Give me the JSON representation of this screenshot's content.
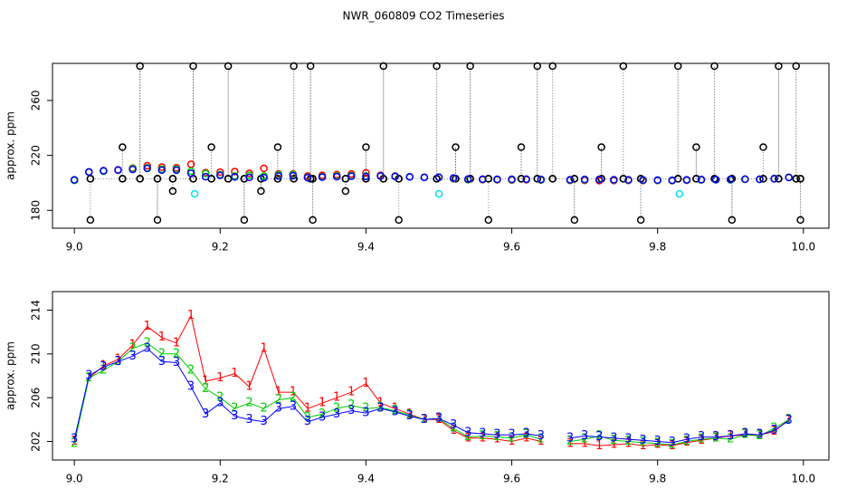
{
  "chart_data": [
    {
      "type": "scatter",
      "title": "NWR_060809  CO2 Timeseries",
      "y_label": "approx. ppm",
      "xlim": [
        8.97,
        10.035
      ],
      "ylim": [
        167,
        287
      ],
      "xticks": [
        {
          "value": 9,
          "label": "9.0"
        },
        9.2,
        9.4,
        9.6,
        9.8,
        {
          "value": 10,
          "label": "10.0"
        }
      ],
      "yticks": [
        180,
        220,
        260
      ],
      "x": [
        9,
        9.02,
        9.04,
        9.06,
        9.08,
        9.1,
        9.12,
        9.14,
        9.16,
        9.18,
        9.2,
        9.22,
        9.24,
        9.26,
        9.28,
        9.3,
        9.32,
        9.34,
        9.36,
        9.38,
        9.4,
        9.42,
        9.44,
        9.46,
        9.48,
        9.5,
        9.52,
        9.54,
        9.56,
        9.58,
        9.6,
        9.62,
        9.64,
        9.66,
        9.68,
        9.7,
        9.72,
        9.74,
        9.76,
        9.78,
        9.8,
        9.82,
        9.84,
        9.86,
        9.88,
        9.9,
        9.92,
        9.94,
        9.96,
        9.98
      ],
      "series": [
        {
          "color": "#000000",
          "line": true,
          "x": [
            9.022,
            9.022,
            9.022,
            9.066,
            9.066,
            9.066,
            9.09,
            9.09,
            9.09,
            9.114,
            9.114,
            9.114,
            9.135,
            9.135,
            9.135,
            9.163,
            9.163,
            9.163,
            9.188,
            9.188,
            9.188,
            9.211,
            9.211,
            9.211,
            9.233,
            9.233,
            9.233,
            9.256,
            9.256,
            9.256,
            9.279,
            9.279,
            9.279,
            9.301,
            9.301,
            9.301,
            9.324,
            9.324,
            9.324,
            9.327,
            9.327,
            9.327,
            9.372,
            9.372,
            9.372,
            9.4,
            9.4,
            9.4,
            9.424,
            9.424,
            9.424,
            9.445,
            9.445,
            9.445,
            9.497,
            9.497,
            9.497,
            9.523,
            9.523,
            9.523,
            9.543,
            9.543,
            9.543,
            9.568,
            9.568,
            9.568,
            9.613,
            9.613,
            9.613,
            9.635,
            9.635,
            9.635,
            9.656,
            9.656,
            9.656,
            9.686,
            9.686,
            9.686,
            9.723,
            9.723,
            9.723,
            9.753,
            9.753,
            9.753,
            9.777,
            9.777,
            9.777,
            9.828,
            9.828,
            9.828,
            9.853,
            9.853,
            9.853,
            9.878,
            9.878,
            9.878,
            9.902,
            9.902,
            9.902,
            9.945,
            9.945,
            9.945,
            9.966,
            9.966,
            9.966,
            9.99,
            9.99,
            9.99,
            9.996,
            9.996,
            9.996
          ],
          "values": [
            203,
            173,
            203,
            203,
            226,
            203,
            203,
            285,
            203,
            203,
            173,
            203,
            203,
            194,
            203,
            203,
            285,
            203,
            203,
            226,
            203,
            203,
            285,
            203,
            203,
            173,
            203,
            203,
            194,
            203,
            203,
            226,
            203,
            203,
            285,
            203,
            203,
            285,
            203,
            203,
            173,
            203,
            203,
            194,
            203,
            203,
            226,
            203,
            203,
            285,
            203,
            203,
            173,
            203,
            203,
            285,
            203,
            203,
            226,
            203,
            203,
            285,
            203,
            203,
            173,
            203,
            203,
            226,
            203,
            203,
            285,
            203,
            203,
            285,
            203,
            203,
            173,
            203,
            203,
            226,
            203,
            203,
            285,
            203,
            203,
            173,
            203,
            203,
            285,
            203,
            203,
            226,
            203,
            203,
            285,
            203,
            203,
            173,
            203,
            203,
            226,
            203,
            203,
            285,
            203,
            203,
            285,
            203,
            203,
            173,
            203
          ]
        },
        {
          "color": "#ff0000",
          "values": [
            202.0,
            207.8,
            208.9,
            209.5,
            210.8,
            212.5,
            211.5,
            211.0,
            213.5,
            207.5,
            207.8,
            208.2,
            207.0,
            210.5,
            206.5,
            206.5,
            205.0,
            205.5,
            206.0,
            206.5,
            207.3,
            205.5,
            205.0,
            204.5,
            204.0,
            204.0,
            203.0,
            202.3,
            202.3,
            202.2,
            202.0,
            202.3,
            202.0,
            null,
            201.8,
            201.8,
            201.6,
            201.7,
            201.8,
            201.6,
            201.7,
            201.6,
            201.9,
            202.1,
            202.3,
            202.5,
            202.6,
            202.6,
            202.9,
            204.0
          ]
        },
        {
          "color": "#00cd00",
          "values": [
            201.8,
            207.8,
            208.5,
            209.3,
            210.5,
            211.0,
            210.0,
            210.0,
            208.5,
            206.8,
            206.0,
            205.0,
            205.5,
            205.0,
            205.8,
            206.0,
            204.2,
            204.5,
            205.0,
            205.3,
            205.0,
            205.1,
            204.8,
            204.4,
            204.0,
            204.1,
            203.2,
            202.4,
            202.5,
            202.4,
            202.3,
            202.6,
            202.2,
            null,
            202.0,
            202.2,
            202.5,
            202.1,
            202.0,
            201.9,
            201.8,
            201.7,
            202.0,
            202.2,
            202.3,
            202.2,
            202.6,
            202.5,
            203.2,
            204.0
          ]
        },
        {
          "color": "#0000ff",
          "values": [
            202.2,
            208.0,
            208.8,
            209.3,
            209.8,
            210.5,
            209.3,
            209.2,
            207.0,
            204.5,
            205.5,
            204.3,
            204.0,
            203.8,
            205.0,
            205.2,
            203.8,
            204.2,
            204.5,
            204.8,
            204.6,
            205.0,
            204.7,
            204.3,
            204.0,
            204.1,
            203.5,
            202.8,
            202.7,
            202.6,
            202.6,
            202.7,
            202.5,
            null,
            202.3,
            202.5,
            202.4,
            202.3,
            202.2,
            202.1,
            202.0,
            201.9,
            202.2,
            202.4,
            202.4,
            202.5,
            202.7,
            202.6,
            203.0,
            203.9
          ]
        },
        {
          "color": "#00e5ee",
          "x": [
            9.165,
            9.5,
            9.83
          ],
          "values": [
            192,
            192,
            192
          ]
        }
      ]
    },
    {
      "type": "line",
      "y_label": "approx. ppm",
      "xlim": [
        8.97,
        10.035
      ],
      "ylim": [
        200.3,
        215.7
      ],
      "xticks": [
        {
          "value": 9,
          "label": "9.0"
        },
        9.2,
        9.4,
        9.6,
        9.8,
        {
          "value": 10,
          "label": "10.0"
        }
      ],
      "yticks": [
        202,
        206,
        210,
        214
      ],
      "x": [
        9,
        9.02,
        9.04,
        9.06,
        9.08,
        9.1,
        9.12,
        9.14,
        9.16,
        9.18,
        9.2,
        9.22,
        9.24,
        9.26,
        9.28,
        9.3,
        9.32,
        9.34,
        9.36,
        9.38,
        9.4,
        9.42,
        9.44,
        9.46,
        9.48,
        9.5,
        9.52,
        9.54,
        9.56,
        9.58,
        9.6,
        9.62,
        9.64,
        9.66,
        9.68,
        9.7,
        9.72,
        9.74,
        9.76,
        9.78,
        9.8,
        9.82,
        9.84,
        9.86,
        9.88,
        9.9,
        9.92,
        9.94,
        9.96,
        9.98
      ],
      "series": [
        {
          "name": "1",
          "color": "#ff0000",
          "values": [
            202.0,
            207.8,
            208.9,
            209.5,
            210.8,
            212.5,
            211.5,
            211.0,
            213.5,
            207.5,
            207.8,
            208.2,
            207.0,
            210.5,
            206.5,
            206.5,
            205.0,
            205.5,
            206.0,
            206.5,
            207.3,
            205.5,
            205.0,
            204.5,
            204.0,
            204.0,
            203.0,
            202.3,
            202.3,
            202.2,
            202.0,
            202.3,
            202.0,
            null,
            201.8,
            201.8,
            201.6,
            201.7,
            201.8,
            201.6,
            201.7,
            201.6,
            201.9,
            202.1,
            202.3,
            202.5,
            202.6,
            202.6,
            202.9,
            204.0
          ]
        },
        {
          "name": "2",
          "color": "#00cd00",
          "values": [
            201.8,
            207.8,
            208.5,
            209.3,
            210.5,
            211.0,
            210.0,
            210.0,
            208.5,
            206.8,
            206.0,
            205.0,
            205.5,
            205.0,
            205.8,
            206.0,
            204.2,
            204.5,
            205.0,
            205.3,
            205.0,
            205.1,
            204.8,
            204.4,
            204.0,
            204.1,
            203.2,
            202.4,
            202.5,
            202.4,
            202.3,
            202.6,
            202.2,
            null,
            202.0,
            202.2,
            202.5,
            202.1,
            202.0,
            201.9,
            201.8,
            201.7,
            202.0,
            202.2,
            202.3,
            202.2,
            202.6,
            202.5,
            203.2,
            204.0
          ]
        },
        {
          "name": "3",
          "color": "#0000ff",
          "values": [
            202.2,
            208.0,
            208.8,
            209.3,
            209.8,
            210.5,
            209.3,
            209.2,
            207.0,
            204.5,
            205.5,
            204.3,
            204.0,
            203.8,
            205.0,
            205.2,
            203.8,
            204.2,
            204.5,
            204.8,
            204.6,
            205.0,
            204.7,
            204.3,
            204.0,
            204.1,
            203.5,
            202.8,
            202.7,
            202.6,
            202.6,
            202.7,
            202.5,
            null,
            202.3,
            202.5,
            202.4,
            202.3,
            202.2,
            202.1,
            202.0,
            201.9,
            202.2,
            202.4,
            202.4,
            202.5,
            202.7,
            202.6,
            203.0,
            203.9
          ]
        }
      ]
    }
  ]
}
